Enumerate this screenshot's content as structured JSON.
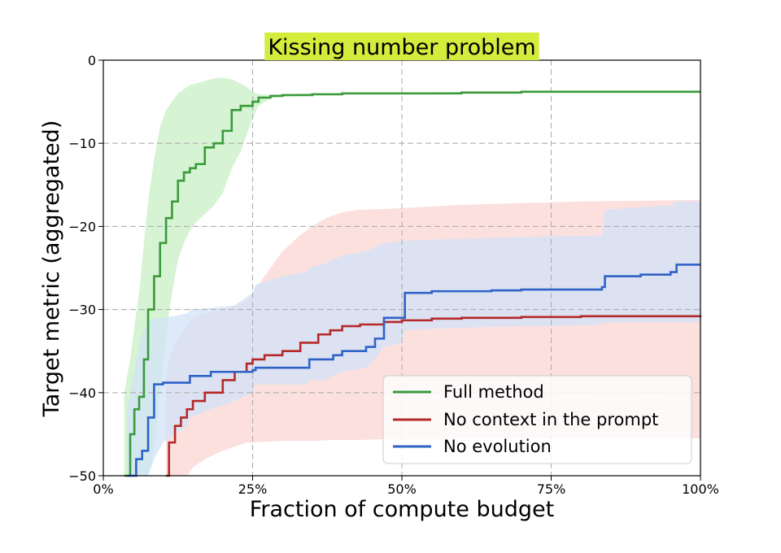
{
  "chart_data": {
    "type": "line",
    "title": "Kissing number problem",
    "title_highlight_color": "#d4ec3c",
    "xlabel": "Fraction of compute budget",
    "ylabel": "Target metric (aggregated)",
    "xlim": [
      0,
      100
    ],
    "ylim": [
      -50,
      0
    ],
    "x_ticks": [
      0,
      25,
      50,
      75,
      100
    ],
    "x_tick_labels": [
      "0%",
      "25%",
      "50%",
      "75%",
      "100%"
    ],
    "y_ticks": [
      0,
      -10,
      -20,
      -30,
      -40,
      -50
    ],
    "y_tick_labels": [
      "0",
      "−10",
      "−20",
      "−30",
      "−40",
      "−50"
    ],
    "grid": true,
    "legend_position": "lower-right",
    "series": [
      {
        "name": "Full method",
        "color": "#3a9a3a",
        "band_color": "#c8efc4",
        "x": [
          3.5,
          4.5,
          5.2,
          6,
          6.8,
          7.5,
          8.5,
          9.5,
          10.5,
          11.5,
          12.5,
          13.5,
          14.5,
          15.5,
          17,
          18.5,
          20,
          21.5,
          23,
          24,
          25,
          26,
          28,
          30,
          35,
          40,
          50,
          60,
          70,
          80,
          90,
          100
        ],
        "y": [
          -50,
          -45,
          -42,
          -40.5,
          -36,
          -30,
          -26,
          -22,
          -19,
          -17,
          -14.5,
          -13.5,
          -13,
          -12.5,
          -10.5,
          -10,
          -8.5,
          -6,
          -5.5,
          -5.5,
          -5,
          -4.5,
          -4.3,
          -4.2,
          -4.1,
          -4.0,
          -4.0,
          -3.9,
          -3.8,
          -3.8,
          -3.8,
          -3.8
        ],
        "y_upper": [
          -40,
          -36,
          -32,
          -28,
          -22,
          -17,
          -12,
          -8,
          -6,
          -5,
          -4,
          -3.5,
          -3,
          -2.8,
          -2.5,
          -2.2,
          -2.1,
          -2.3,
          -2.8,
          -3.2,
          -3.8,
          -4.1,
          -4.2,
          -4.1,
          -4.0,
          -4.0,
          -3.9,
          -3.8,
          -3.8,
          -3.8,
          -3.7,
          -3.7
        ],
        "y_lower": [
          -50,
          -50,
          -50,
          -50,
          -50,
          -50,
          -47,
          -40,
          -33,
          -28,
          -24,
          -22,
          -20.5,
          -19.5,
          -18.5,
          -17.5,
          -16,
          -13,
          -11,
          -9,
          -7,
          -5.5,
          -4.6,
          -4.4,
          -4.2,
          -4.1,
          -4.1,
          -4.0,
          -3.9,
          -3.9,
          -3.9,
          -3.9
        ]
      },
      {
        "name": "No context in the prompt",
        "color": "#b52828",
        "band_color": "#f9d5d3",
        "x": [
          10.5,
          11,
          12,
          13,
          14,
          15,
          17,
          20,
          22,
          24,
          25,
          27,
          30,
          33,
          36,
          38,
          40,
          43,
          47,
          50,
          55,
          60,
          70,
          80,
          90,
          100
        ],
        "y": [
          -50,
          -46,
          -44,
          -43,
          -42,
          -41,
          -40,
          -38.5,
          -37.5,
          -36.5,
          -36,
          -35.5,
          -35,
          -34,
          -33,
          -32.5,
          -32,
          -31.8,
          -31.5,
          -31.3,
          -31.1,
          -31,
          -30.9,
          -30.8,
          -30.8,
          -30.7
        ],
        "y_upper": [
          -38,
          -36,
          -34,
          -33,
          -32,
          -31,
          -30.5,
          -30,
          -29.5,
          -29,
          -28,
          -26,
          -23,
          -21,
          -19.5,
          -18.8,
          -18.3,
          -18,
          -17.9,
          -17.8,
          -17.6,
          -17.4,
          -17.2,
          -17,
          -16.9,
          -16.8
        ],
        "y_lower": [
          -50,
          -50,
          -50,
          -50,
          -50,
          -49,
          -48,
          -47,
          -46.5,
          -46,
          -46,
          -45.9,
          -45.8,
          -45.8,
          -45.8,
          -45.7,
          -45.7,
          -45.7,
          -45.6,
          -45.6,
          -45.6,
          -45.5,
          -45.5,
          -45.5,
          -45.5,
          -45.5
        ]
      },
      {
        "name": "No evolution",
        "color": "#2f62c7",
        "band_color": "#d2e3f8",
        "x": [
          4,
          5.5,
          6.5,
          7.5,
          8.5,
          10,
          14,
          14.5,
          18,
          22,
          25,
          25.5,
          30,
          34,
          34.5,
          37,
          38.5,
          40,
          44,
          45.5,
          47,
          50,
          50.5,
          55,
          60,
          65,
          70,
          75,
          83.5,
          84,
          90,
          95,
          96,
          100
        ],
        "y": [
          -50,
          -48,
          -47,
          -43,
          -39,
          -38.8,
          -38.8,
          -38,
          -37.5,
          -37.5,
          -37.3,
          -37,
          -37,
          -37,
          -36,
          -36,
          -35.5,
          -35,
          -34.5,
          -33.5,
          -31,
          -31,
          -28,
          -27.8,
          -27.8,
          -27.7,
          -27.6,
          -27.6,
          -27.3,
          -26,
          -25.8,
          -25.5,
          -24.6,
          -24.6
        ],
        "y_upper": [
          -42,
          -36,
          -33,
          -31.5,
          -31,
          -31,
          -30.5,
          -30,
          -29.8,
          -29.5,
          -28,
          -27,
          -26,
          -25.5,
          -25,
          -24.5,
          -24,
          -23.5,
          -23,
          -22.5,
          -22,
          -21.8,
          -21.7,
          -21.6,
          -21.5,
          -21.4,
          -21.3,
          -21.2,
          -21.1,
          -18,
          -17.7,
          -17.5,
          -17,
          -17
        ],
        "y_lower": [
          -50,
          -50,
          -50,
          -50,
          -48,
          -46,
          -44,
          -43,
          -42,
          -41,
          -40,
          -39,
          -39,
          -39,
          -38.5,
          -38.5,
          -38,
          -37.5,
          -37,
          -36,
          -34.5,
          -34,
          -32.5,
          -32.3,
          -32.2,
          -32.1,
          -32,
          -32,
          -31.8,
          -31.6,
          -31.5,
          -31.5,
          -31.5,
          -31.5
        ]
      }
    ]
  }
}
